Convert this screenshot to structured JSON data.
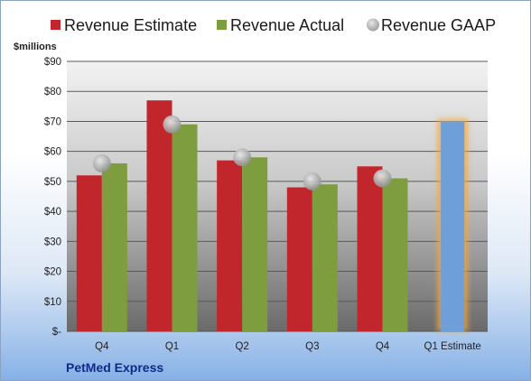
{
  "company": "PetMed Express",
  "chart_data": {
    "type": "bar",
    "ylabel": "$millions",
    "ylim": [
      0,
      90
    ],
    "yticks": [
      0,
      10,
      20,
      30,
      40,
      50,
      60,
      70,
      80,
      90
    ],
    "ytick_labels": [
      "$-",
      "$10",
      "$20",
      "$30",
      "$40",
      "$50",
      "$60",
      "$70",
      "$80",
      "$90"
    ],
    "categories": [
      "Q4",
      "Q1",
      "Q2",
      "Q3",
      "Q4",
      "Q1 Estimate"
    ],
    "series": [
      {
        "name": "Revenue Estimate",
        "kind": "bar",
        "color": "#c0262b",
        "values": [
          52,
          77,
          57,
          48,
          55,
          null
        ]
      },
      {
        "name": "Revenue Actual",
        "kind": "bar",
        "color": "#7d9d3e",
        "values": [
          56,
          69,
          58,
          49,
          51,
          null
        ]
      },
      {
        "name": "Revenue GAAP",
        "kind": "marker",
        "color": "#a9a9a9",
        "values": [
          56,
          69,
          58,
          50,
          51,
          null
        ]
      },
      {
        "name": "Q1 Estimate",
        "kind": "highlight-bar",
        "color": "#6f9fd8",
        "values": [
          null,
          null,
          null,
          null,
          null,
          70
        ]
      }
    ],
    "legend_position": "top",
    "grid": true
  }
}
